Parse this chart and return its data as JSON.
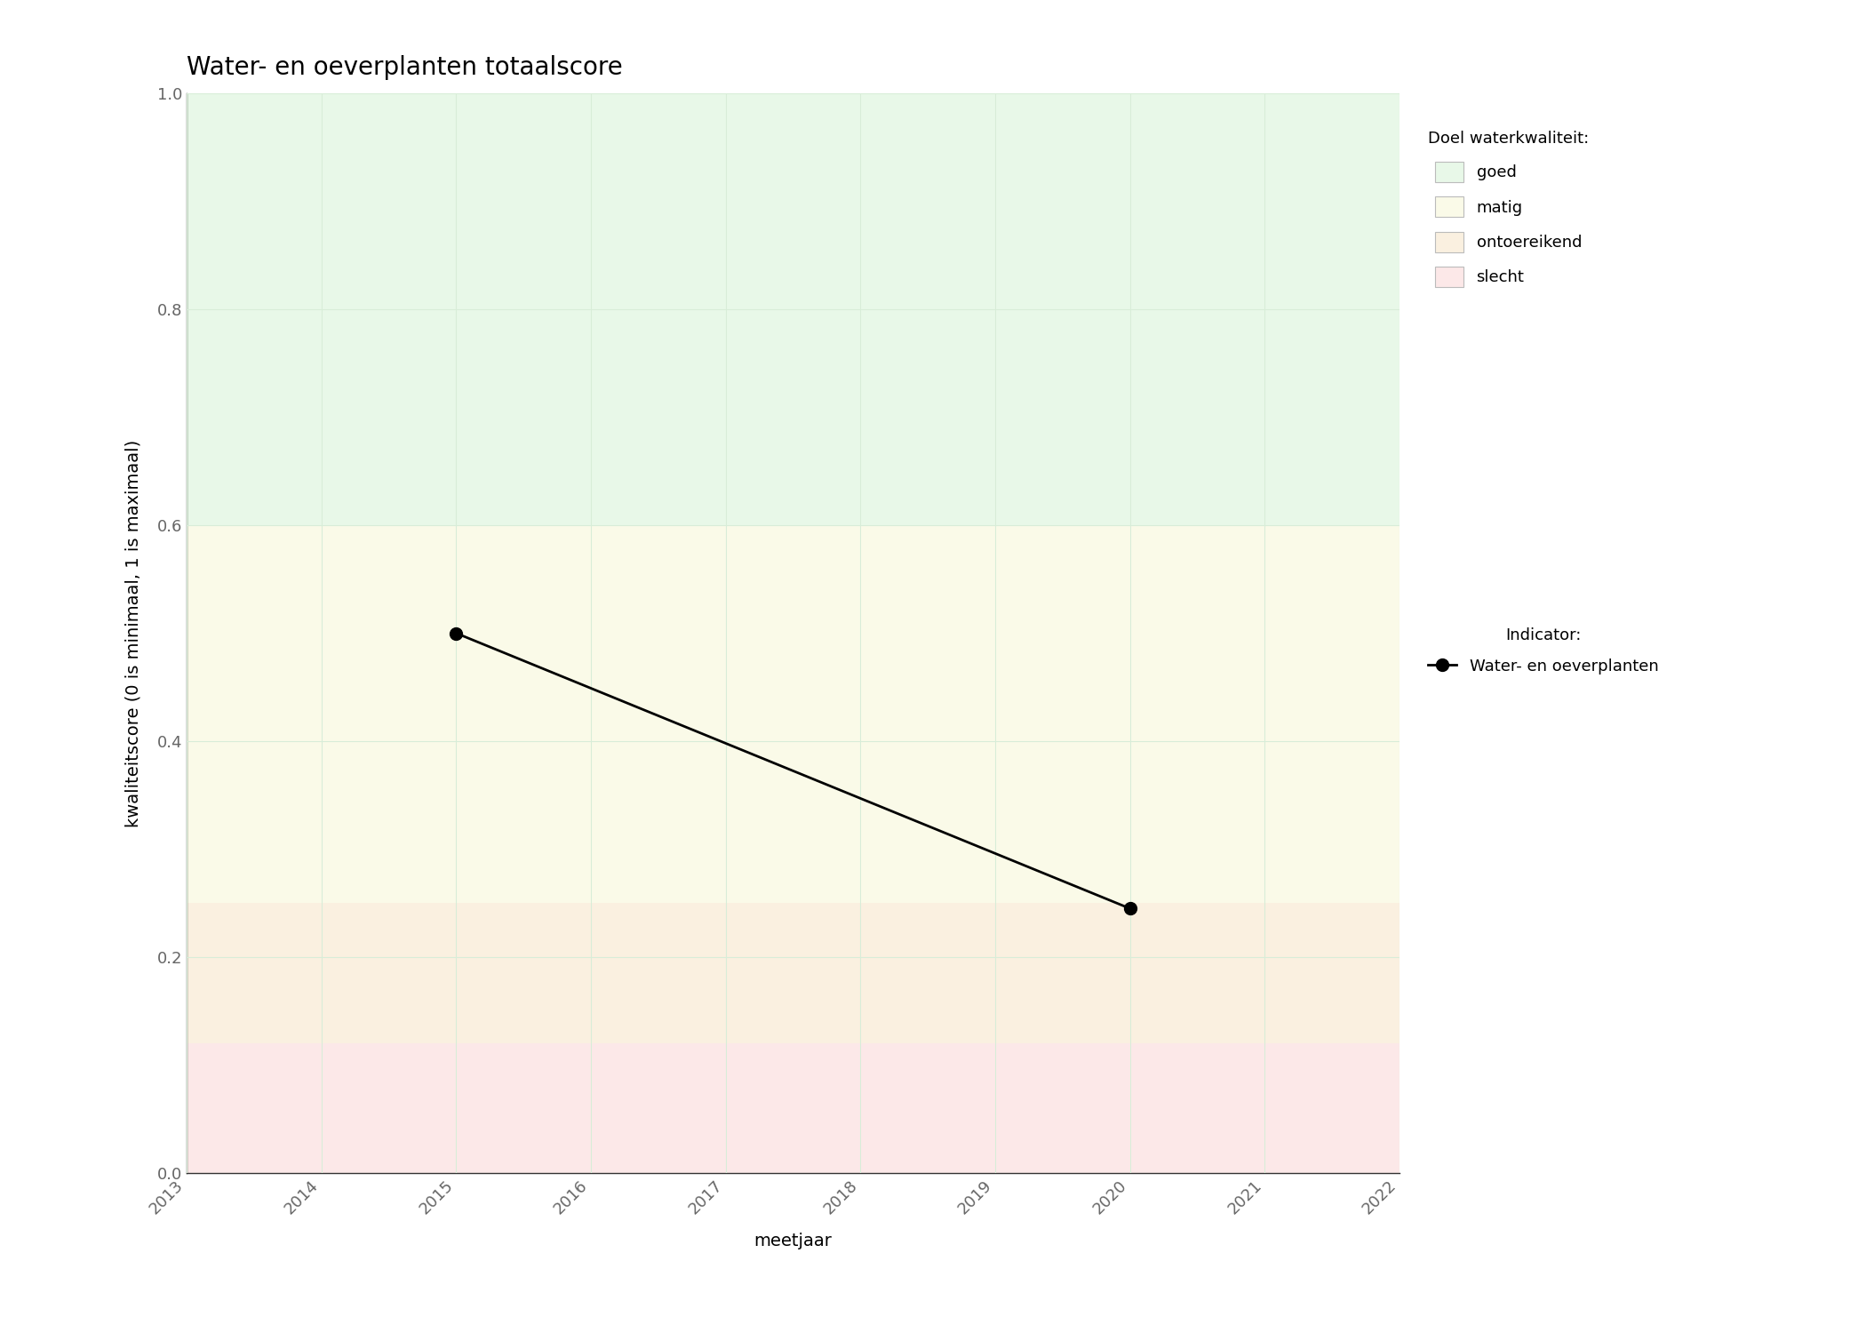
{
  "title": "Water- en oeverplanten totaalscore",
  "xlabel": "meetjaar",
  "ylabel": "kwaliteitscore (0 is minimaal, 1 is maximaal)",
  "xlim": [
    2013,
    2022
  ],
  "ylim": [
    0.0,
    1.0
  ],
  "xticks": [
    2013,
    2014,
    2015,
    2016,
    2017,
    2018,
    2019,
    2020,
    2021,
    2022
  ],
  "yticks": [
    0.0,
    0.2,
    0.4,
    0.6,
    0.8,
    1.0
  ],
  "data_x": [
    2015,
    2020
  ],
  "data_y": [
    0.5,
    0.245
  ],
  "line_color": "black",
  "marker": "o",
  "marker_color": "black",
  "marker_size": 10,
  "line_width": 2,
  "bg_bands": [
    {
      "label": "goed",
      "color": "#e8f8e8",
      "ymin": 0.6,
      "ymax": 1.0
    },
    {
      "label": "matig",
      "color": "#fafae8",
      "ymin": 0.25,
      "ymax": 0.6
    },
    {
      "label": "ontoereikend",
      "color": "#faf0e0",
      "ymin": 0.12,
      "ymax": 0.25
    },
    {
      "label": "slecht",
      "color": "#fce8e8",
      "ymin": 0.0,
      "ymax": 0.12
    }
  ],
  "legend_quality_title": "Doel waterkwaliteit:",
  "legend_quality_labels": [
    "goed",
    "matig",
    "ontoereikend",
    "slecht"
  ],
  "legend_quality_colors": [
    "#e8f8e8",
    "#fafae8",
    "#faf0e0",
    "#fce8e8"
  ],
  "legend_indicator_title": "Indicator:",
  "legend_indicator_label": "Water- en oeverplanten",
  "grid_color": "#d8edd8",
  "background_color": "#ffffff",
  "title_fontsize": 20,
  "axis_label_fontsize": 14,
  "tick_fontsize": 13,
  "legend_fontsize": 13,
  "tick_color": "#666666"
}
